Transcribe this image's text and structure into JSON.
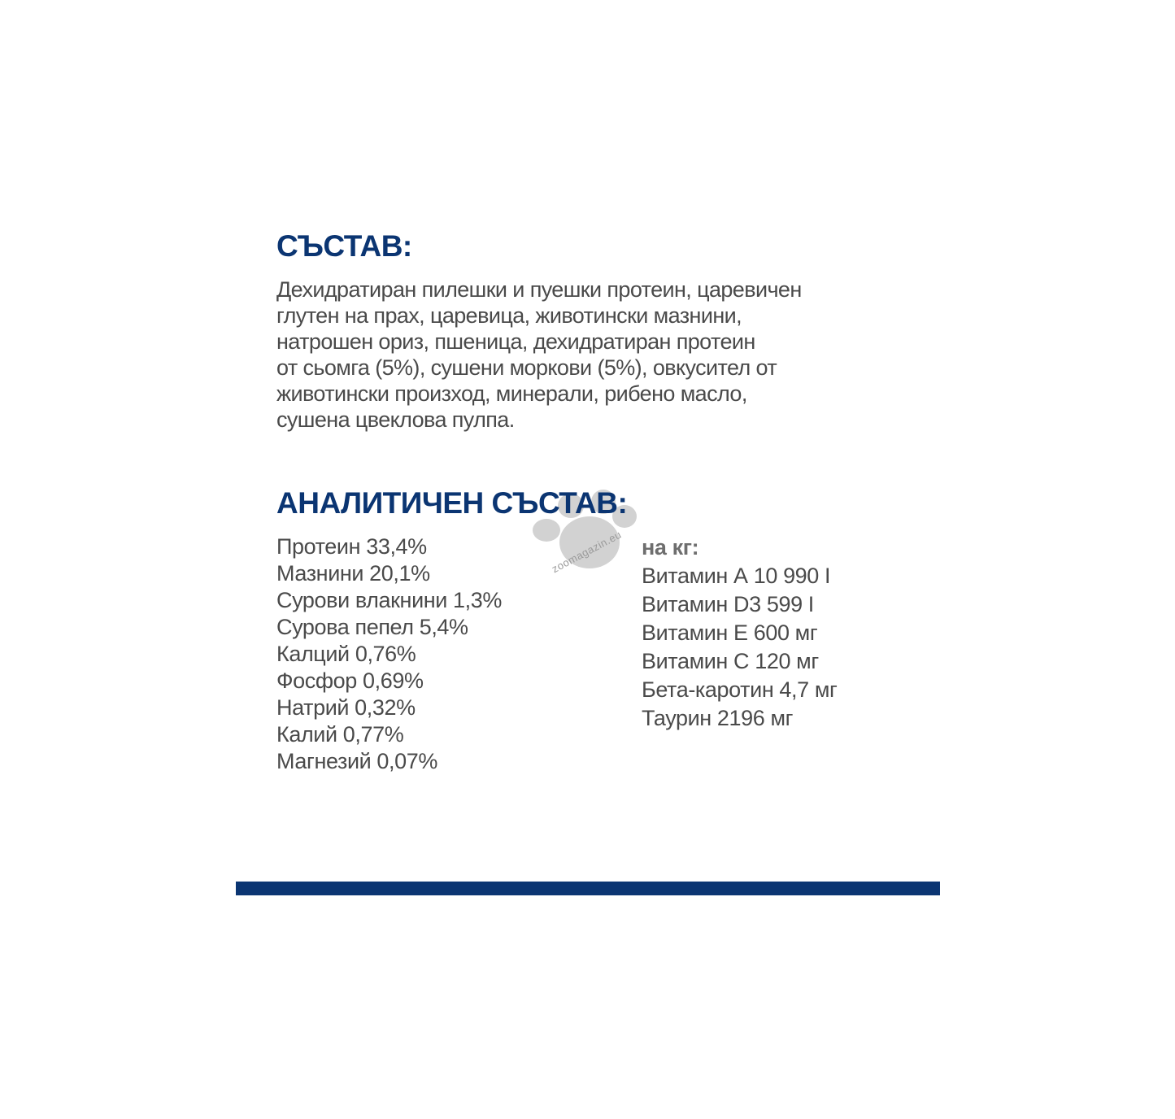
{
  "composition": {
    "heading": "СЪСТАВ:",
    "lines": [
      "Дехидратиран пилешки и пуешки протеин, царевичен",
      "глутен на прах, царевица, животински мазнини,",
      "натрошен ориз, пшеница, дехидратиран протеин",
      "от сьомга (5%), сушени моркови (5%), овкусител от",
      "животински произход, минерали, рибено масло,",
      "сушена цвеклова пулпа."
    ]
  },
  "analytical": {
    "heading": "АНАЛИТИЧЕН СЪСТАВ:",
    "left": [
      "Протеин 33,4%",
      "Мазнини 20,1%",
      "Сурови влакнини 1,3%",
      "Сурова пепел 5,4%",
      "Калций 0,76%",
      "Фосфор 0,69%",
      "Натрий 0,32%",
      "Калий 0,77%",
      "Магнезий 0,07%"
    ],
    "per_kg_label": "на кг:",
    "right": [
      "Витамин А 10 990 I",
      "Витамин D3 599 I",
      "Витамин Е 600 мг",
      "Витамин С 120 мг",
      "Бета-каротин 4,7 мг",
      "Таурин 2196 мг"
    ]
  },
  "watermark": {
    "text": "zoomagazin.eu",
    "icon": "paw-icon"
  },
  "colors": {
    "heading": "#0b3572",
    "text": "#4a4a4a",
    "bar": "#0b3572"
  }
}
